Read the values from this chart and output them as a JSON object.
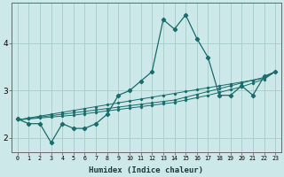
{
  "xlabel": "Humidex (Indice chaleur)",
  "bg_color": "#cce8e8",
  "grid_color": "#aad0d0",
  "line_color": "#1a6b6b",
  "x_values": [
    0,
    1,
    2,
    3,
    4,
    5,
    6,
    7,
    8,
    9,
    10,
    11,
    12,
    13,
    14,
    15,
    16,
    17,
    18,
    19,
    20,
    21,
    22,
    23
  ],
  "main_series": [
    2.4,
    2.3,
    2.3,
    1.9,
    2.3,
    2.2,
    2.2,
    2.3,
    2.5,
    2.9,
    3.0,
    3.2,
    3.4,
    4.5,
    4.3,
    4.6,
    4.1,
    3.7,
    2.9,
    2.9,
    3.1,
    2.9,
    3.3,
    3.4
  ],
  "trend_lines": [
    [
      2.38,
      2.42,
      2.46,
      2.5,
      2.54,
      2.58,
      2.62,
      2.66,
      2.7,
      2.74,
      2.78,
      2.82,
      2.86,
      2.9,
      2.94,
      2.98,
      3.02,
      3.06,
      3.1,
      3.14,
      3.18,
      3.22,
      3.26,
      3.4
    ],
    [
      2.38,
      2.41,
      2.44,
      2.47,
      2.5,
      2.53,
      2.56,
      2.59,
      2.62,
      2.65,
      2.68,
      2.71,
      2.74,
      2.77,
      2.8,
      2.86,
      2.92,
      2.98,
      3.04,
      3.1,
      3.16,
      3.22,
      3.28,
      3.4
    ],
    [
      2.38,
      2.4,
      2.42,
      2.44,
      2.46,
      2.48,
      2.51,
      2.54,
      2.57,
      2.6,
      2.63,
      2.66,
      2.69,
      2.72,
      2.75,
      2.8,
      2.85,
      2.9,
      2.96,
      3.02,
      3.08,
      3.16,
      3.24,
      3.4
    ]
  ],
  "ylim": [
    1.7,
    4.85
  ],
  "xlim": [
    -0.5,
    23.5
  ],
  "yticks": [
    2,
    3,
    4
  ],
  "xticks": [
    0,
    1,
    2,
    3,
    4,
    5,
    6,
    7,
    8,
    9,
    10,
    11,
    12,
    13,
    14,
    15,
    16,
    17,
    18,
    19,
    20,
    21,
    22,
    23
  ]
}
